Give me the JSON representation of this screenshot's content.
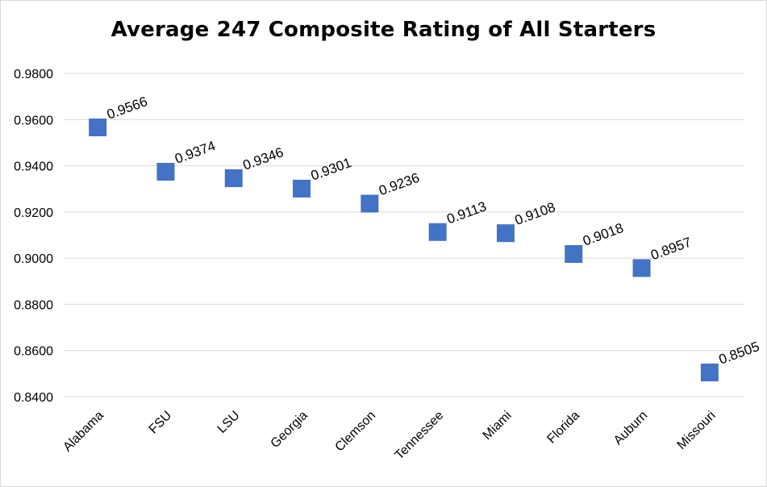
{
  "chart_data": {
    "type": "scatter",
    "title": "Average 247 Composite Rating of All Starters",
    "xlabel": "",
    "ylabel": "",
    "categories": [
      "Alabama",
      "FSU",
      "LSU",
      "Georgia",
      "Clemson",
      "Tennessee",
      "Miami",
      "Florida",
      "Auburn",
      "Missouri"
    ],
    "values": [
      0.9566,
      0.9374,
      0.9346,
      0.9301,
      0.9236,
      0.9113,
      0.9108,
      0.9018,
      0.8957,
      0.8505
    ],
    "data_labels": [
      "0.9566",
      "0.9374",
      "0.9346",
      "0.9301",
      "0.9236",
      "0.9113",
      "0.9108",
      "0.9018",
      "0.8957",
      "0.8505"
    ],
    "ylim": [
      0.84,
      0.98
    ],
    "yticks": [
      "0.8400",
      "0.8600",
      "0.8800",
      "0.9000",
      "0.9200",
      "0.9400",
      "0.9600",
      "0.9800"
    ],
    "ytick_values": [
      0.84,
      0.86,
      0.88,
      0.9,
      0.92,
      0.94,
      0.96,
      0.98
    ],
    "grid": true,
    "marker": "square",
    "marker_color": "#4472C4",
    "grid_color": "#d9d9d9"
  }
}
